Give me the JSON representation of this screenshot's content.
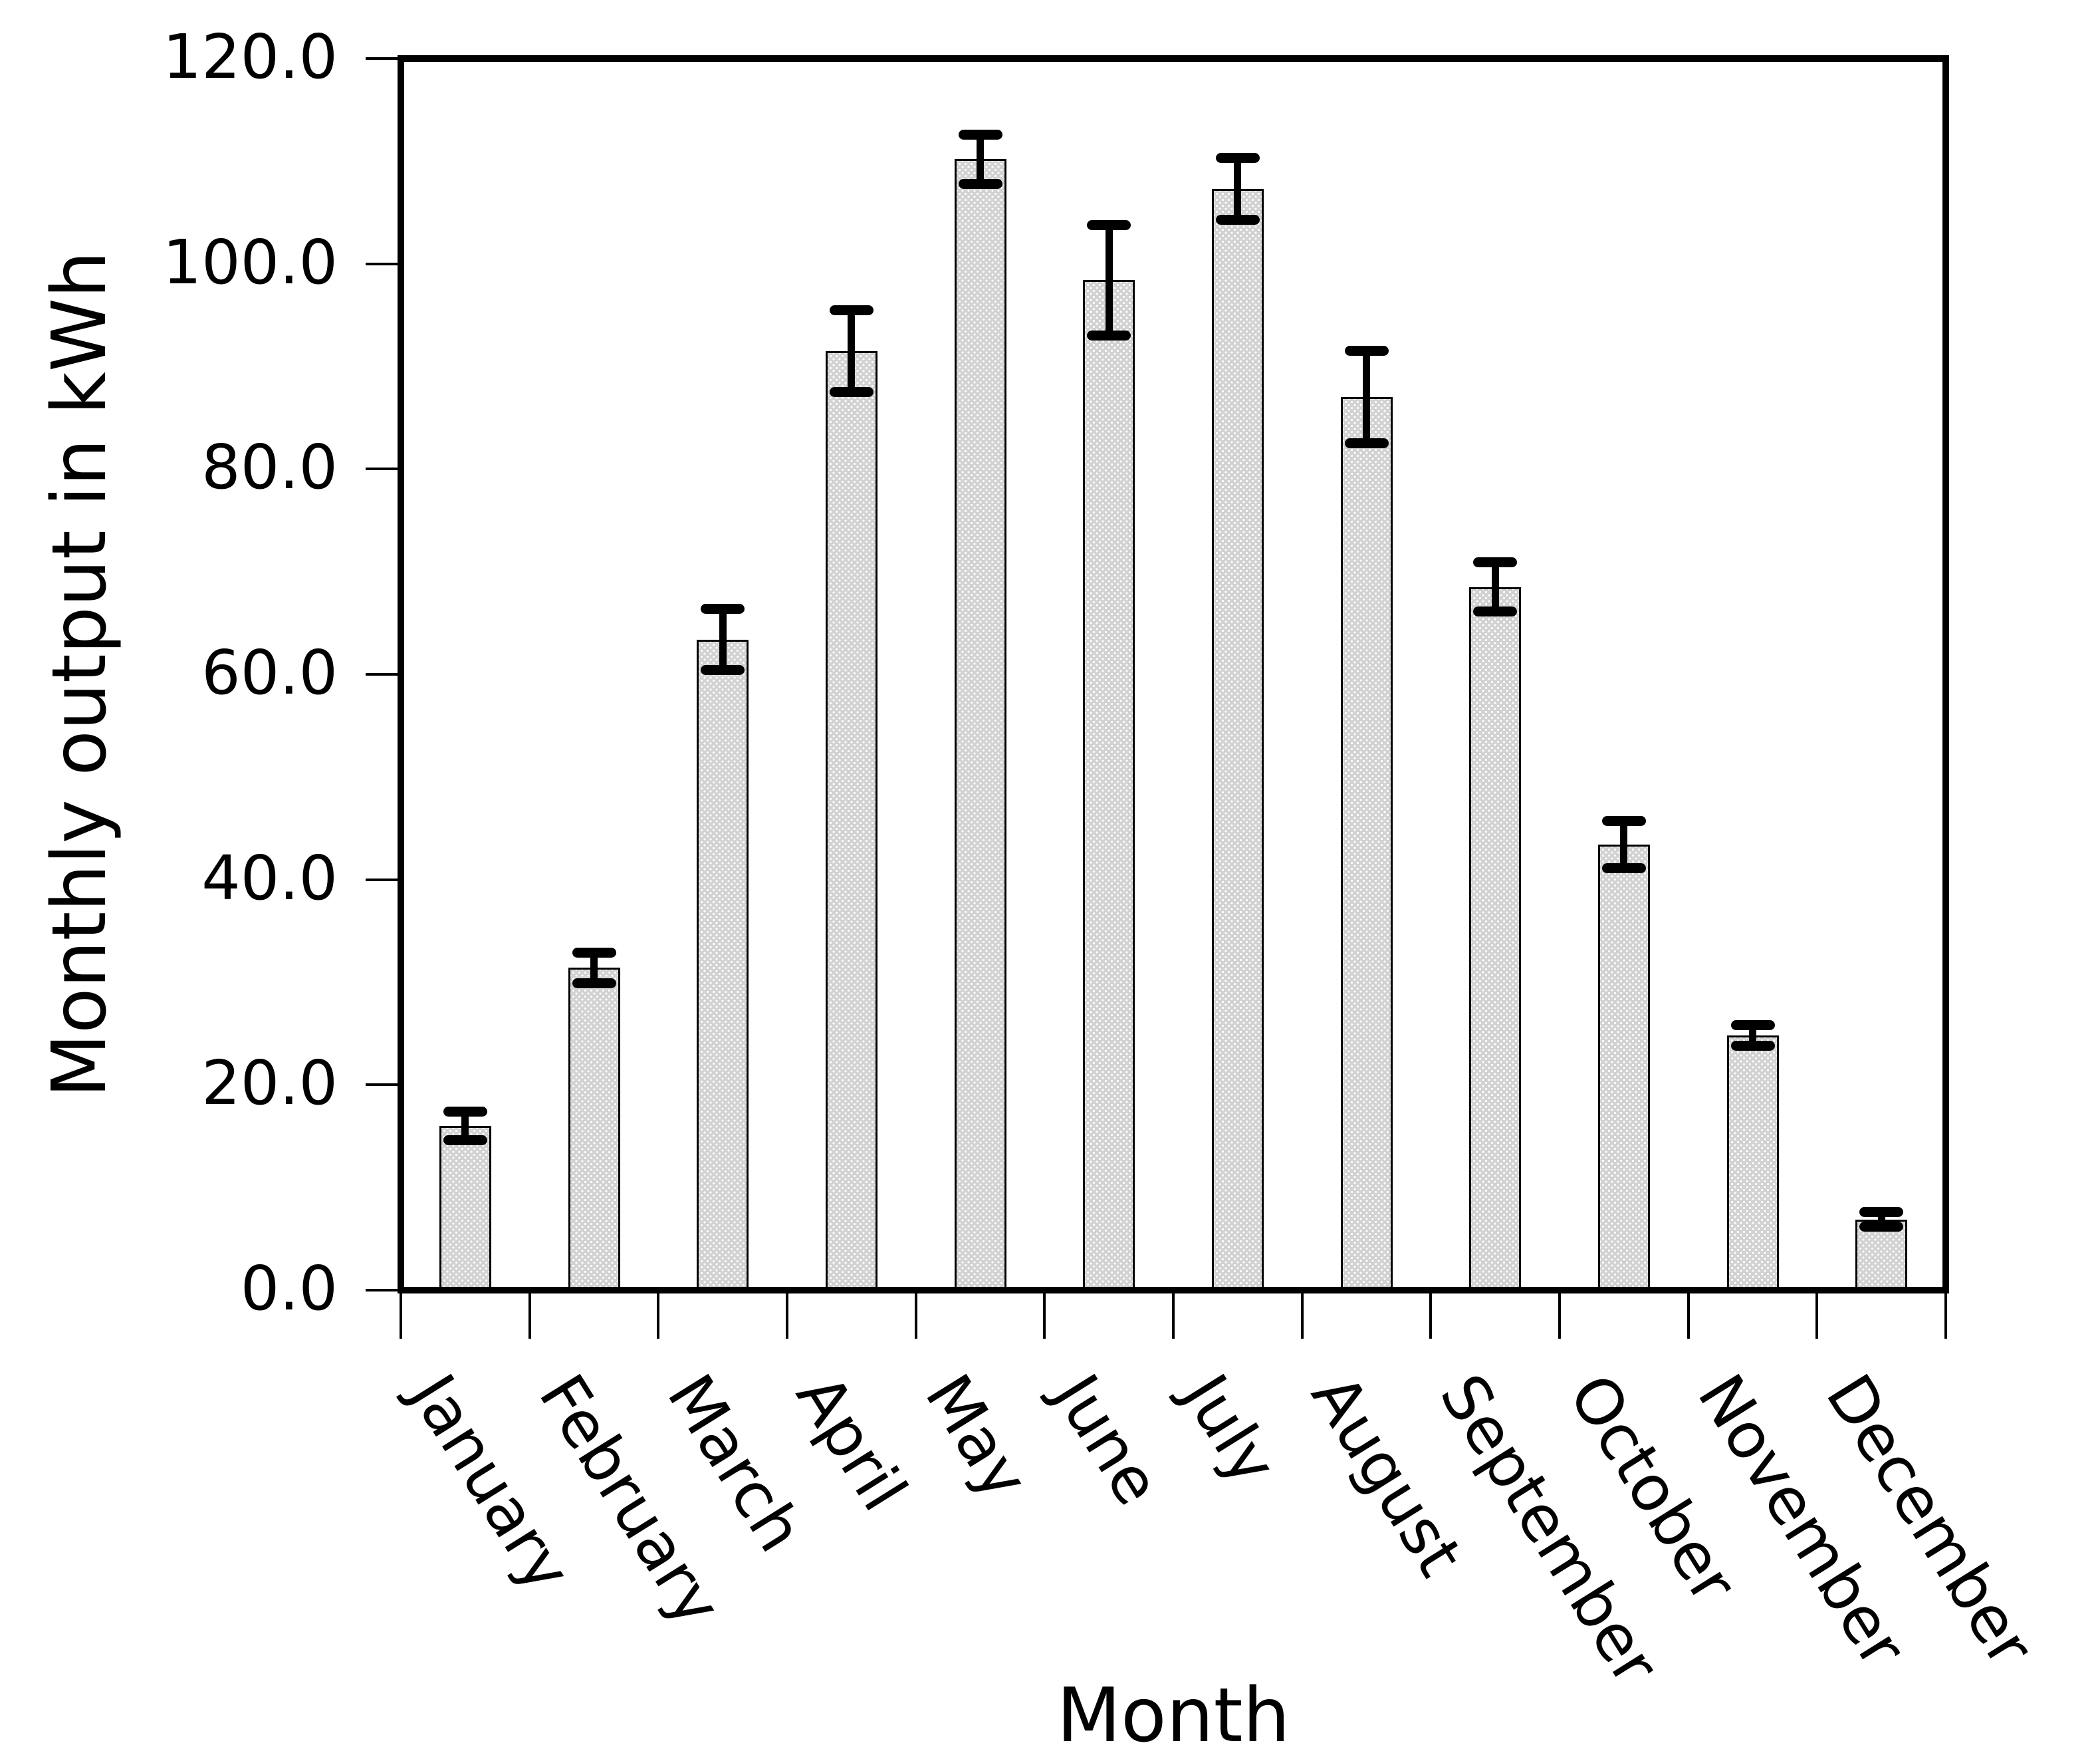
{
  "chart_data": {
    "type": "bar",
    "title": "",
    "xlabel": "Month",
    "ylabel": "Monthly output in kWh",
    "categories": [
      "January",
      "February",
      "March",
      "April",
      "May",
      "June",
      "July",
      "August",
      "September",
      "October",
      "November",
      "December"
    ],
    "values": [
      16.0,
      31.4,
      63.4,
      91.5,
      110.2,
      98.4,
      107.3,
      87.0,
      68.5,
      43.4,
      24.8,
      6.9
    ],
    "errors": [
      1.4,
      1.5,
      3.0,
      4.0,
      2.4,
      5.4,
      3.0,
      4.5,
      2.4,
      2.3,
      1.0,
      0.7
    ],
    "ylim": [
      0,
      120
    ],
    "ytick_step": 20,
    "ytick_labels": [
      "0.0",
      "20.0",
      "40.0",
      "60.0",
      "80.0",
      "100.0",
      "120.0"
    ],
    "xtick_count": 13,
    "grid": false,
    "legend": null,
    "bar_fill_color": "#d2d2d2",
    "bar_edge_color": "#000000",
    "error_bar_color": "#000000",
    "axis_color": "#000000",
    "background_color": "#ffffff"
  }
}
